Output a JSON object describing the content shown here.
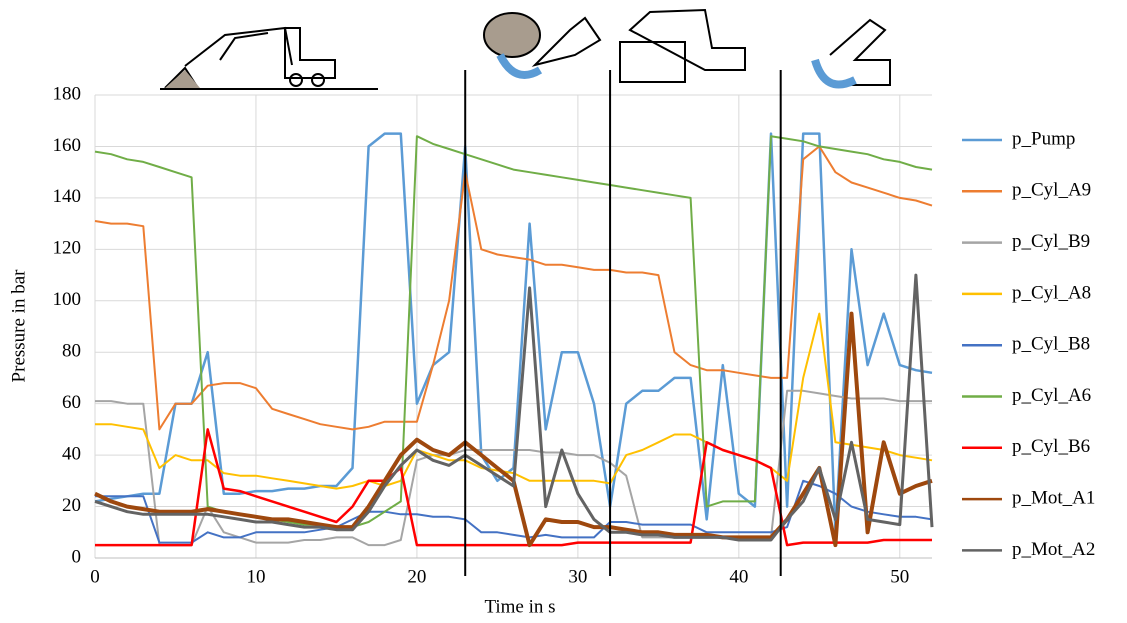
{
  "chart_data": {
    "type": "line",
    "x_label": "Time in s",
    "y_label": "Pressure in bar",
    "xlim": [
      0,
      52
    ],
    "ylim": [
      0,
      180
    ],
    "xticks": [
      0,
      10,
      20,
      30,
      40,
      50
    ],
    "yticks": [
      0,
      20,
      40,
      60,
      80,
      100,
      120,
      140,
      160,
      180
    ],
    "grid": true,
    "legend": "right",
    "phase_lines": [
      23,
      32,
      42.6
    ],
    "x": [
      0,
      1,
      2,
      3,
      4,
      5,
      6,
      7,
      8,
      9,
      10,
      11,
      12,
      13,
      14,
      15,
      16,
      17,
      18,
      19,
      20,
      21,
      22,
      23,
      24,
      25,
      26,
      27,
      28,
      29,
      30,
      31,
      32,
      33,
      34,
      35,
      36,
      37,
      38,
      39,
      40,
      41,
      42,
      43,
      44,
      45,
      46,
      47,
      48,
      49,
      50,
      51,
      52
    ],
    "series": [
      {
        "name": "p_Pump",
        "color": "#5b9bd5",
        "width": 2.5,
        "values": [
          22,
          23,
          24,
          25,
          25,
          60,
          60,
          80,
          25,
          25,
          26,
          26,
          27,
          27,
          28,
          28,
          35,
          160,
          165,
          165,
          60,
          75,
          80,
          160,
          40,
          30,
          35,
          130,
          50,
          80,
          80,
          60,
          20,
          60,
          65,
          65,
          70,
          70,
          15,
          75,
          25,
          20,
          165,
          20,
          165,
          165,
          10,
          120,
          75,
          95,
          75,
          73,
          72
        ]
      },
      {
        "name": "p_Cyl_A9",
        "color": "#ed7d31",
        "width": 2,
        "values": [
          131,
          130,
          130,
          129,
          50,
          60,
          60,
          67,
          68,
          68,
          66,
          58,
          56,
          54,
          52,
          51,
          50,
          51,
          53,
          53,
          53,
          75,
          100,
          150,
          120,
          118,
          117,
          116,
          114,
          114,
          113,
          112,
          112,
          111,
          111,
          110,
          80,
          75,
          73,
          73,
          72,
          71,
          70,
          70,
          155,
          160,
          150,
          146,
          144,
          142,
          140,
          139,
          137
        ]
      },
      {
        "name": "p_Cyl_B9",
        "color": "#a5a5a5",
        "width": 2,
        "values": [
          61,
          61,
          60,
          60,
          5,
          5,
          5,
          20,
          10,
          8,
          6,
          6,
          6,
          7,
          7,
          8,
          8,
          5,
          5,
          7,
          38,
          40,
          40,
          42,
          42,
          42,
          42,
          42,
          41,
          41,
          40,
          40,
          37,
          32,
          8,
          8,
          8,
          8,
          8,
          8,
          8,
          8,
          8,
          65,
          65,
          64,
          63,
          62,
          62,
          62,
          61,
          61,
          61
        ]
      },
      {
        "name": "p_Cyl_A8",
        "color": "#ffc000",
        "width": 2,
        "values": [
          52,
          52,
          51,
          50,
          35,
          40,
          38,
          38,
          33,
          32,
          32,
          31,
          30,
          29,
          28,
          27,
          28,
          30,
          28,
          30,
          42,
          40,
          38,
          38,
          35,
          34,
          33,
          30,
          30,
          30,
          30,
          30,
          29,
          40,
          42,
          45,
          48,
          48,
          45,
          42,
          40,
          38,
          35,
          30,
          70,
          95,
          45,
          44,
          43,
          42,
          40,
          39,
          38
        ]
      },
      {
        "name": "p_Cyl_B8",
        "color": "#4472c4",
        "width": 2,
        "values": [
          24,
          24,
          24,
          24,
          6,
          6,
          6,
          10,
          8,
          8,
          10,
          10,
          10,
          10,
          11,
          12,
          15,
          18,
          18,
          17,
          17,
          16,
          16,
          15,
          10,
          10,
          9,
          8,
          9,
          8,
          8,
          8,
          14,
          14,
          13,
          13,
          13,
          13,
          10,
          10,
          10,
          10,
          10,
          12,
          30,
          28,
          25,
          20,
          18,
          17,
          16,
          16,
          15
        ]
      },
      {
        "name": "p_Cyl_A6",
        "color": "#70ad47",
        "width": 2,
        "values": [
          158,
          157,
          155,
          154,
          152,
          150,
          148,
          20,
          18,
          17,
          16,
          15,
          14,
          13,
          13,
          12,
          12,
          14,
          18,
          22,
          164,
          161,
          159,
          157,
          155,
          153,
          151,
          150,
          149,
          148,
          147,
          146,
          145,
          144,
          143,
          142,
          141,
          140,
          20,
          22,
          22,
          22,
          164,
          163,
          162,
          160,
          159,
          158,
          157,
          155,
          154,
          152,
          151
        ]
      },
      {
        "name": "p_Cyl_B6",
        "color": "#ff0000",
        "width": 2.5,
        "values": [
          5,
          5,
          5,
          5,
          5,
          5,
          5,
          50,
          27,
          26,
          24,
          22,
          20,
          18,
          16,
          14,
          20,
          30,
          30,
          35,
          5,
          5,
          5,
          5,
          5,
          5,
          5,
          5,
          5,
          5,
          6,
          6,
          6,
          6,
          6,
          6,
          6,
          6,
          45,
          42,
          40,
          38,
          35,
          5,
          6,
          6,
          6,
          6,
          6,
          7,
          7,
          7,
          7
        ]
      },
      {
        "name": "p_Mot_A1",
        "color": "#9e480e",
        "width": 4,
        "values": [
          25,
          22,
          20,
          19,
          18,
          18,
          18,
          19,
          18,
          17,
          16,
          15,
          15,
          14,
          13,
          12,
          12,
          20,
          30,
          40,
          46,
          42,
          40,
          45,
          40,
          35,
          30,
          5,
          15,
          14,
          14,
          12,
          12,
          11,
          10,
          10,
          9,
          9,
          9,
          8,
          8,
          8,
          8,
          15,
          25,
          35,
          5,
          95,
          10,
          45,
          25,
          28,
          30
        ]
      },
      {
        "name": "p_Mot_A2",
        "color": "#636363",
        "width": 3,
        "values": [
          22,
          20,
          18,
          17,
          17,
          17,
          17,
          17,
          16,
          15,
          14,
          14,
          13,
          12,
          12,
          11,
          11,
          18,
          28,
          36,
          42,
          38,
          36,
          40,
          36,
          32,
          28,
          105,
          20,
          42,
          25,
          15,
          10,
          10,
          9,
          9,
          8,
          8,
          8,
          8,
          7,
          7,
          7,
          15,
          22,
          35,
          15,
          45,
          15,
          14,
          13,
          110,
          12
        ]
      }
    ]
  }
}
